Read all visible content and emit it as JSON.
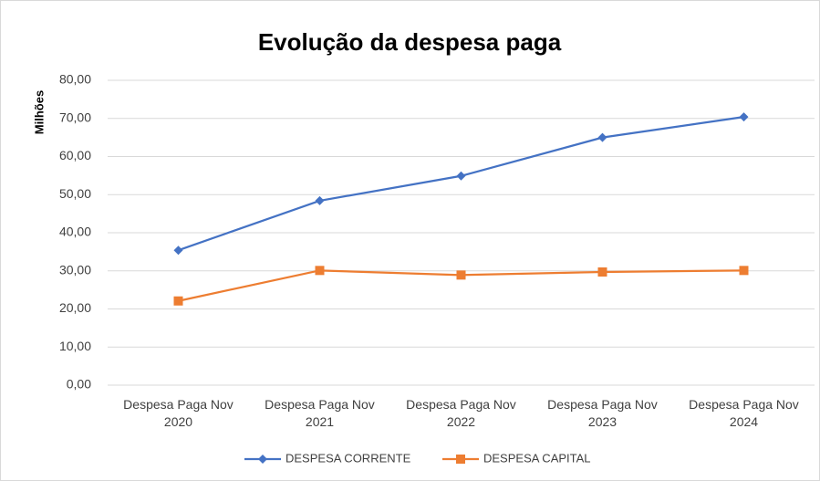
{
  "chart_data": {
    "type": "line",
    "title": "Evolução da despesa paga",
    "y_label": "Milhões",
    "categories": [
      "Despesa Paga Nov 2020",
      "Despesa Paga Nov 2021",
      "Despesa Paga Nov 2022",
      "Despesa Paga Nov 2023",
      "Despesa Paga Nov 2024"
    ],
    "series": [
      {
        "name": "DESPESA CORRENTE",
        "color": "#4472c4",
        "marker": "diamond",
        "values": [
          35.4,
          48.4,
          54.9,
          65.0,
          70.4
        ]
      },
      {
        "name": "DESPESA CAPITAL",
        "color": "#ed7d31",
        "marker": "square",
        "values": [
          22.1,
          30.1,
          28.9,
          29.7,
          30.1
        ]
      }
    ],
    "ylim": [
      0,
      80
    ],
    "yticks": [
      {
        "value": 0,
        "label": "0,00"
      },
      {
        "value": 10,
        "label": "10,00"
      },
      {
        "value": 20,
        "label": "20,00"
      },
      {
        "value": 30,
        "label": "30,00"
      },
      {
        "value": 40,
        "label": "40,00"
      },
      {
        "value": 50,
        "label": "50,00"
      },
      {
        "value": 60,
        "label": "60,00"
      },
      {
        "value": 70,
        "label": "70,00"
      },
      {
        "value": 80,
        "label": "80,00"
      }
    ],
    "grid": true,
    "legend": "bottom"
  }
}
